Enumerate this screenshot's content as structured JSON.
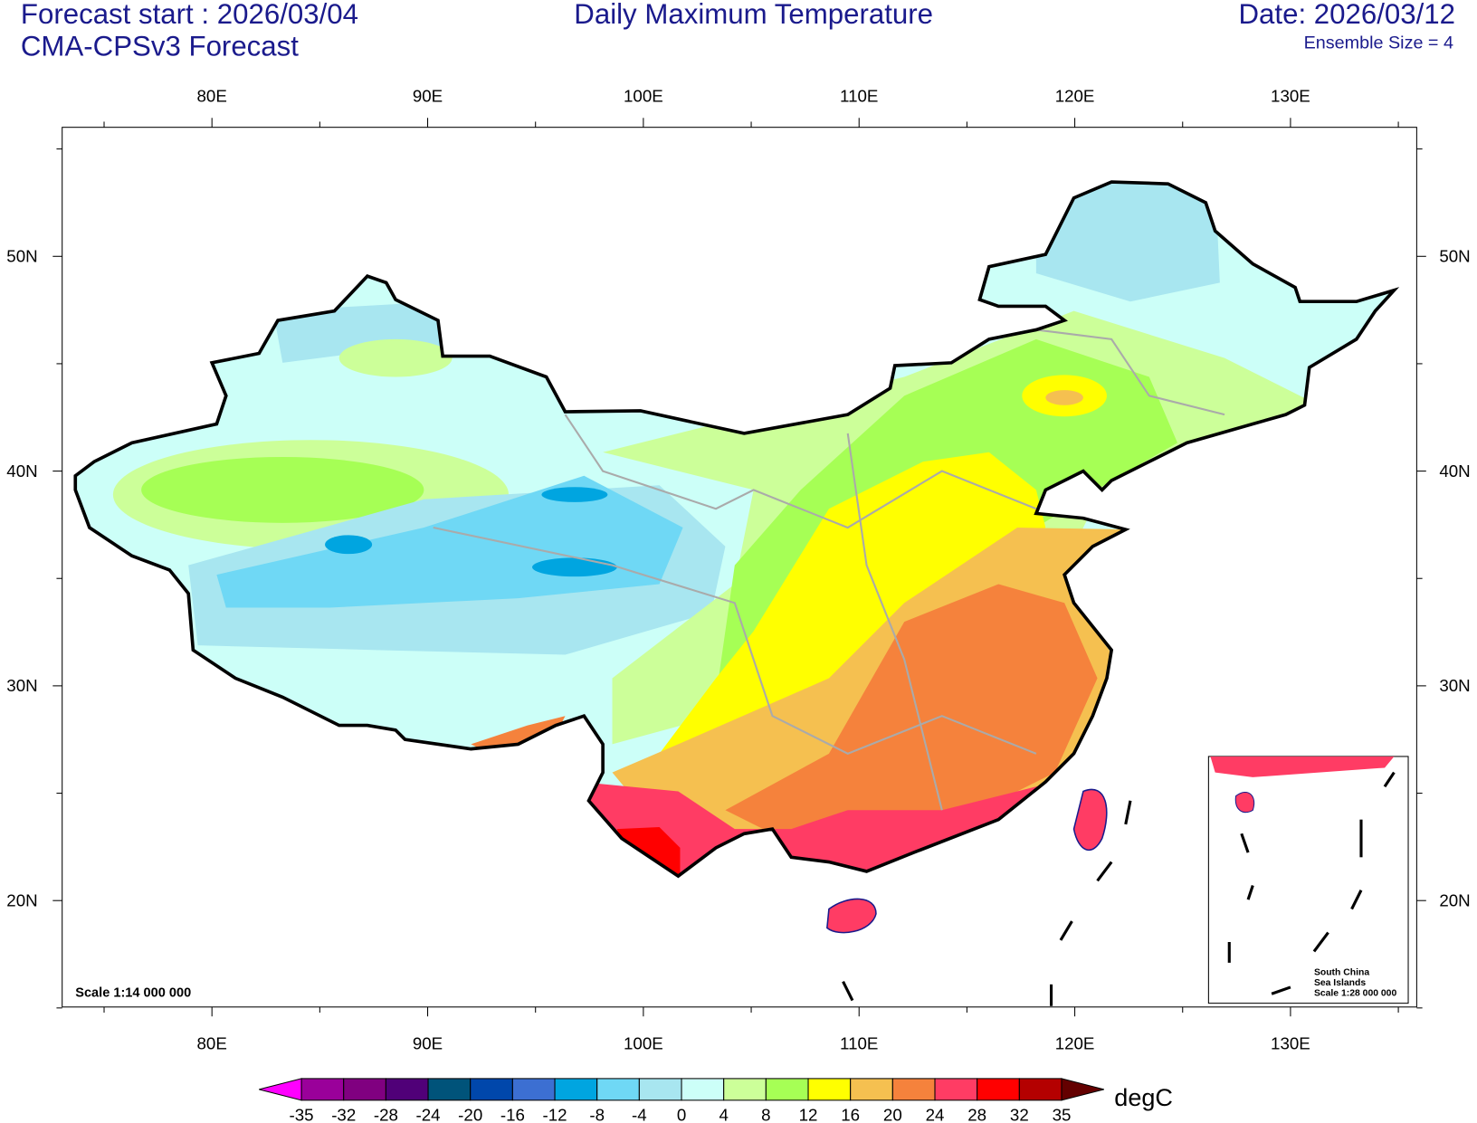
{
  "header": {
    "forecast_start": "Forecast start : 2026/03/04",
    "model": "CMA-CPSv3 Forecast",
    "title": "Daily Maximum Temperature",
    "date": "Date: 2026/03/12",
    "ensemble": "Ensemble Size = 4"
  },
  "map": {
    "lon_labels": [
      "80E",
      "90E",
      "100E",
      "110E",
      "120E",
      "130E"
    ],
    "lat_labels": [
      "50N",
      "40N",
      "30N",
      "20N"
    ],
    "scale": "Scale 1:14 000 000"
  },
  "inset": {
    "lines": [
      "South China",
      "Sea Islands",
      "Scale 1:28 000 000"
    ]
  },
  "colorbar": {
    "labels": [
      -35,
      -32,
      -28,
      -24,
      -20,
      -16,
      -12,
      -8,
      -4,
      0,
      4,
      8,
      12,
      16,
      20,
      24,
      28,
      32,
      35
    ],
    "colors": [
      "#ff00ff",
      "#9a009a",
      "#800080",
      "#500078",
      "#00537a",
      "#0047ab",
      "#3c6fd2",
      "#00a5e0",
      "#6fd8f5",
      "#a8e6f0",
      "#ccfff8",
      "#ccff99",
      "#a6ff55",
      "#ffff00",
      "#f5c050",
      "#f5823c",
      "#ff3c64",
      "#ff0000",
      "#b40000",
      "#640000"
    ],
    "unit": "degC"
  }
}
